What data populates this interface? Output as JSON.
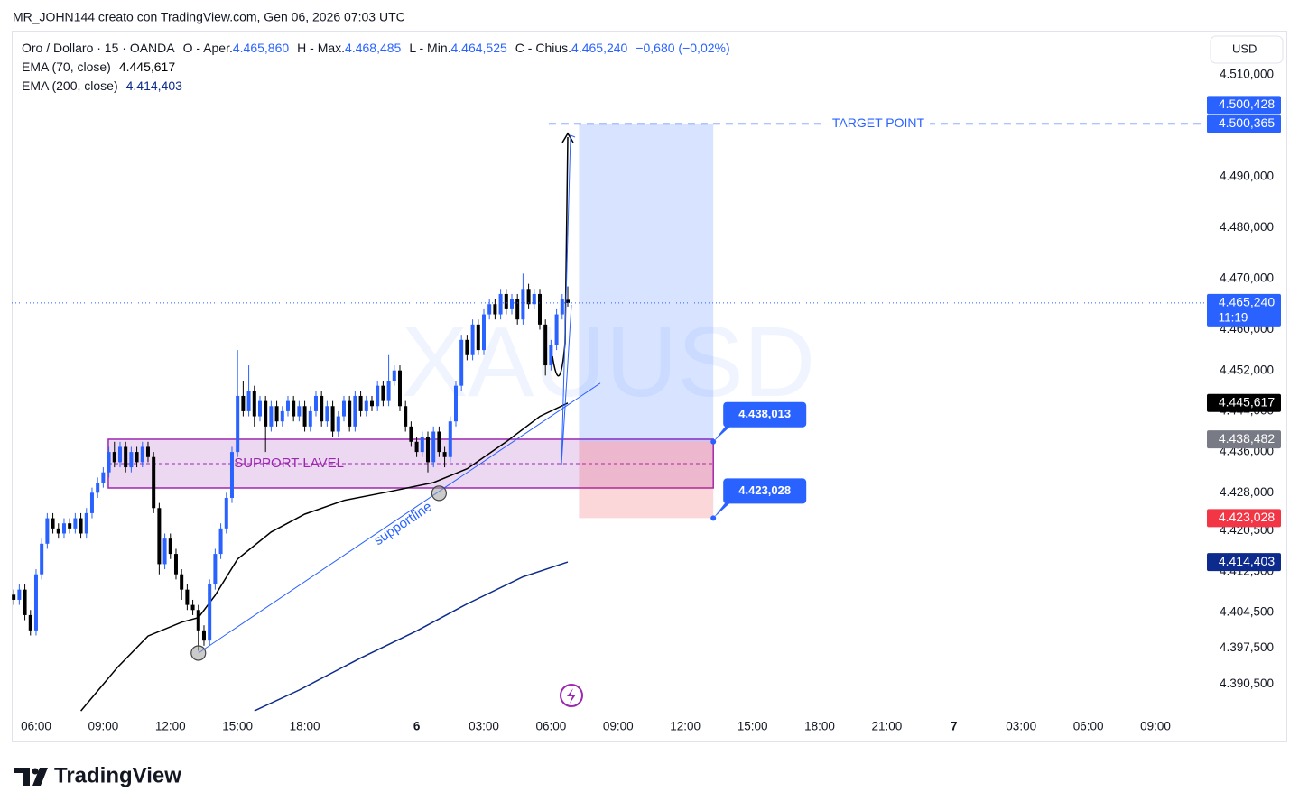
{
  "header": {
    "text": "MR_JOHN144 creato con TradingView.com, Gen 06, 2026 07:03 UTC"
  },
  "footer": {
    "brand": "TradingView"
  },
  "chart_data": {
    "type": "candlestick",
    "watermark": "XAUUSD",
    "currency": "USD",
    "legend": {
      "symbol": "Oro / Dollaro · 15 · OANDA",
      "color": "#2962ff",
      "fields": [
        {
          "prefix": "O - Aper.",
          "value": 4465.86,
          "label": "4.465,860"
        },
        {
          "prefix": "H - Max.",
          "value": 4468.485,
          "label": "4.468,485"
        },
        {
          "prefix": "L - Min.",
          "value": 4464.525,
          "label": "4.464,525"
        },
        {
          "prefix": "C - Chius.",
          "value": 4465.24,
          "label": "4.465,240"
        }
      ],
      "change": "−0,680 (−0,02%)"
    },
    "up_color": "#2962ff",
    "down_color": "#000000",
    "grid": false,
    "xlim": [
      -4.35,
      209.03
    ],
    "ylim": [
      4384.87,
      4518.67
    ],
    "xticks": [
      {
        "value": 0,
        "label": "06:00"
      },
      {
        "value": 12,
        "label": "09:00"
      },
      {
        "value": 24,
        "label": "12:00"
      },
      {
        "value": 36,
        "label": "15:00"
      },
      {
        "value": 48,
        "label": "18:00"
      },
      {
        "value": 68,
        "label": "6"
      },
      {
        "value": 80,
        "label": "03:00"
      },
      {
        "value": 92,
        "label": "06:00"
      },
      {
        "value": 104,
        "label": "09:00"
      },
      {
        "value": 116,
        "label": "12:00"
      },
      {
        "value": 128,
        "label": "15:00"
      },
      {
        "value": 140,
        "label": "18:00"
      },
      {
        "value": 152,
        "label": "21:00"
      },
      {
        "value": 164,
        "label": "7"
      },
      {
        "value": 176,
        "label": "03:00"
      },
      {
        "value": 188,
        "label": "06:00"
      },
      {
        "value": 200,
        "label": "09:00"
      }
    ],
    "yticks": [
      {
        "value": 4510,
        "label": "4.510,000"
      },
      {
        "value": 4490,
        "label": "4.490,000"
      },
      {
        "value": 4480,
        "label": "4.480,000"
      },
      {
        "value": 4470,
        "label": "4.470,000"
      },
      {
        "value": 4460,
        "label": "4.460,000"
      },
      {
        "value": 4452,
        "label": "4.452,000"
      },
      {
        "value": 4444,
        "label": "4.444,000"
      },
      {
        "value": 4436,
        "label": "4.436,000"
      },
      {
        "value": 4428,
        "label": "4.428,000"
      },
      {
        "value": 4420.5,
        "label": "4.420,500"
      },
      {
        "value": 4412.5,
        "label": "4.412,500"
      },
      {
        "value": 4404.5,
        "label": "4.404,500"
      },
      {
        "value": 4397.5,
        "label": "4.397,500"
      },
      {
        "value": 4390.5,
        "label": "4.390,500"
      }
    ],
    "x": [
      -4,
      -3,
      -2,
      -1,
      0,
      1,
      2,
      3,
      4,
      5,
      6,
      7,
      8,
      9,
      10,
      11,
      12,
      13,
      14,
      15,
      16,
      17,
      18,
      19,
      20,
      21,
      22,
      23,
      24,
      25,
      26,
      27,
      28,
      29,
      30,
      31,
      32,
      33,
      34,
      35,
      36,
      37,
      38,
      39,
      40,
      41,
      42,
      43,
      44,
      45,
      46,
      47,
      48,
      49,
      50,
      51,
      52,
      53,
      54,
      55,
      56,
      57,
      58,
      59,
      60,
      61,
      62,
      63,
      64,
      65,
      66,
      67,
      68,
      69,
      70,
      71,
      72,
      73,
      74,
      75,
      76,
      77,
      78,
      79,
      80,
      81,
      82,
      83,
      84,
      85,
      86,
      87,
      88,
      89,
      90,
      91,
      92,
      93,
      94,
      95
    ],
    "open": [
      4408,
      4407,
      4409,
      4404,
      4401,
      4412,
      4418,
      4423,
      4421,
      4420,
      4422,
      4421,
      4423,
      4420,
      4424,
      4428,
      4430,
      4432,
      4436,
      4434,
      4437,
      4433,
      4436,
      4434,
      4437,
      4435,
      4425,
      4414,
      4419,
      4416,
      4412,
      4409,
      4406,
      4405,
      4401,
      4399,
      4410,
      4416,
      4421,
      4427,
      4436,
      4447,
      4444,
      4448,
      4443,
      4446,
      4441,
      4445,
      4442,
      4444,
      4446,
      4443,
      4445,
      4441,
      4444,
      4447,
      4442,
      4445,
      4440,
      4443,
      4446,
      4441,
      4447,
      4444,
      4446,
      4445,
      4449,
      4446,
      4450,
      4452,
      4445,
      4441,
      4438,
      4436,
      4439,
      4434,
      4440,
      4436,
      4435,
      4442,
      4449,
      4458,
      4455,
      4461,
      4456,
      4463,
      4465,
      4463,
      4467,
      4464,
      4466,
      4462,
      4468,
      4465,
      4467,
      4461,
      4453,
      4457,
      4463,
      4465.86
    ],
    "high": [
      4409,
      4410,
      4410,
      4405,
      4413,
      4419,
      4424,
      4424,
      4422,
      4423,
      4423,
      4424,
      4424,
      4425,
      4429,
      4431,
      4433,
      4437,
      4438,
      4438,
      4438,
      4437,
      4437,
      4438,
      4438,
      4436,
      4426,
      4420,
      4420,
      4417,
      4413,
      4410,
      4407,
      4406,
      4402,
      4411,
      4417,
      4422,
      4428,
      4437,
      4456,
      4450,
      4453,
      4449,
      4447,
      4447,
      4446,
      4446,
      4445,
      4447,
      4447,
      4446,
      4446,
      4445,
      4448,
      4448,
      4446,
      4446,
      4444,
      4447,
      4447,
      4448,
      4448,
      4447,
      4447,
      4450,
      4450,
      4455,
      4453,
      4453,
      4446,
      4442,
      4439,
      4440,
      4440,
      4441,
      4441,
      4437,
      4443,
      4450,
      4459,
      4459,
      4462,
      4462,
      4464,
      4466,
      4466,
      4468,
      4468,
      4467,
      4467,
      4471,
      4469,
      4468,
      4468,
      4462,
      4458,
      4464,
      4467,
      4468.485
    ],
    "low": [
      4406,
      4406,
      4403,
      4400,
      4400,
      4411,
      4417,
      4420,
      4419,
      4419,
      4420,
      4420,
      4419,
      4419,
      4423,
      4427,
      4429,
      4431,
      4433,
      4433,
      4432,
      4432,
      4433,
      4433,
      4434,
      4424,
      4412,
      4413,
      4415,
      4411,
      4407,
      4405,
      4404,
      4397,
      4398,
      4398,
      4409,
      4415,
      4420,
      4426,
      4435,
      4443,
      4443,
      4441,
      4442,
      4436,
      4440,
      4441,
      4441,
      4443,
      4442,
      4442,
      4440,
      4440,
      4443,
      4441,
      4441,
      4439,
      4439,
      4442,
      4440,
      4440,
      4443,
      4443,
      4444,
      4444,
      4445,
      4445,
      4449,
      4444,
      4440,
      4437,
      4435,
      4435,
      4432,
      4433,
      4435,
      4433,
      4434,
      4441,
      4448,
      4454,
      4454,
      4455,
      4455,
      4462,
      4462,
      4462,
      4463,
      4463,
      4461,
      4461,
      4464,
      4464,
      4460,
      4451,
      4452,
      4456,
      4462,
      4464.525
    ],
    "close": [
      4407,
      4409,
      4404,
      4401,
      4412,
      4418,
      4423,
      4421,
      4420,
      4422,
      4421,
      4423,
      4420,
      4424,
      4428,
      4430,
      4432,
      4436,
      4434,
      4437,
      4433,
      4436,
      4434,
      4437,
      4435,
      4425,
      4414,
      4419,
      4416,
      4412,
      4409,
      4406,
      4405,
      4401,
      4399,
      4410,
      4416,
      4421,
      4427,
      4436,
      4447,
      4444,
      4448,
      4443,
      4446,
      4441,
      4445,
      4442,
      4444,
      4446,
      4443,
      4445,
      4441,
      4444,
      4447,
      4442,
      4445,
      4440,
      4443,
      4446,
      4441,
      4447,
      4444,
      4446,
      4445,
      4449,
      4446,
      4450,
      4452,
      4445,
      4441,
      4438,
      4436,
      4439,
      4434,
      4440,
      4436,
      4435,
      4442,
      4449,
      4458,
      4455,
      4461,
      4456,
      4463,
      4465,
      4463,
      4467,
      4464,
      4466,
      4462,
      4468,
      4465,
      4467,
      4461,
      4453,
      4457,
      4463,
      4466,
      4465.24
    ],
    "series": [
      {
        "name": "EMA (70, close)",
        "color": "#000000",
        "value_label": "4.445,617",
        "x": [
          8,
          14.5,
          20,
          26,
          29,
          32,
          36,
          42,
          48,
          55,
          63,
          71,
          77,
          84,
          90,
          95
        ],
        "values": [
          4385.2,
          4393.7,
          4399.9,
          4402.6,
          4403.5,
          4407.9,
          4415.0,
          4420.3,
          4423.8,
          4426.5,
          4428.2,
          4430.0,
          4432.7,
          4438.0,
          4443.0,
          4445.617
        ]
      },
      {
        "name": "EMA (200, close)",
        "color": "#0d2b8c",
        "value_label": "4.414,403",
        "x": [
          39,
          47,
          58,
          68,
          77,
          87,
          95
        ],
        "values": [
          4385.2,
          4389.3,
          4395.6,
          4400.9,
          4406.2,
          4411.5,
          4414.403
        ]
      }
    ],
    "support_zone": {
      "label": "SUPPORT LAVEL",
      "color": "#9c27b0",
      "x": [
        12.9,
        121
      ],
      "top": 4438.5,
      "bottom": 4428.94
    },
    "supportline": {
      "label": "supportline",
      "color": "#2962ff",
      "x": [
        29,
        100.8
      ],
      "values": [
        4396.55,
        4449.5
      ],
      "touches": {
        "x": [
          29,
          72
        ],
        "values": [
          4396.55,
          4427.9
        ]
      }
    },
    "target_line": {
      "label": "TARGET POINT",
      "color": "#2962ff",
      "x_start": 91.6,
      "value": 4500.365
    },
    "position": {
      "x": [
        97,
        121
      ],
      "entry": {
        "value": 4438.013,
        "label": "4.438,013"
      },
      "stop": {
        "value": 4423.028,
        "label": "4.423,028"
      },
      "target": {
        "value": 4500.365
      }
    },
    "price_labels": [
      {
        "value": 4500.365,
        "label": "4.500,365",
        "color": "#2962ff"
      },
      {
        "value": 4500.428,
        "label": "4.500,428",
        "color": "#2962ff"
      },
      {
        "value": 4465.24,
        "label": "4.465,240",
        "color": "#2962ff",
        "countdown": "11:19"
      },
      {
        "value": 4445.617,
        "label": "4.445,617",
        "color": "#000000"
      },
      {
        "value": 4438.482,
        "label": "4.438,482",
        "color": "#787b86"
      },
      {
        "value": 4423.028,
        "label": "4.423,028",
        "color": "#f23645"
      },
      {
        "value": 4414.403,
        "label": "4.414,403",
        "color": "#0d2b8c"
      }
    ]
  }
}
